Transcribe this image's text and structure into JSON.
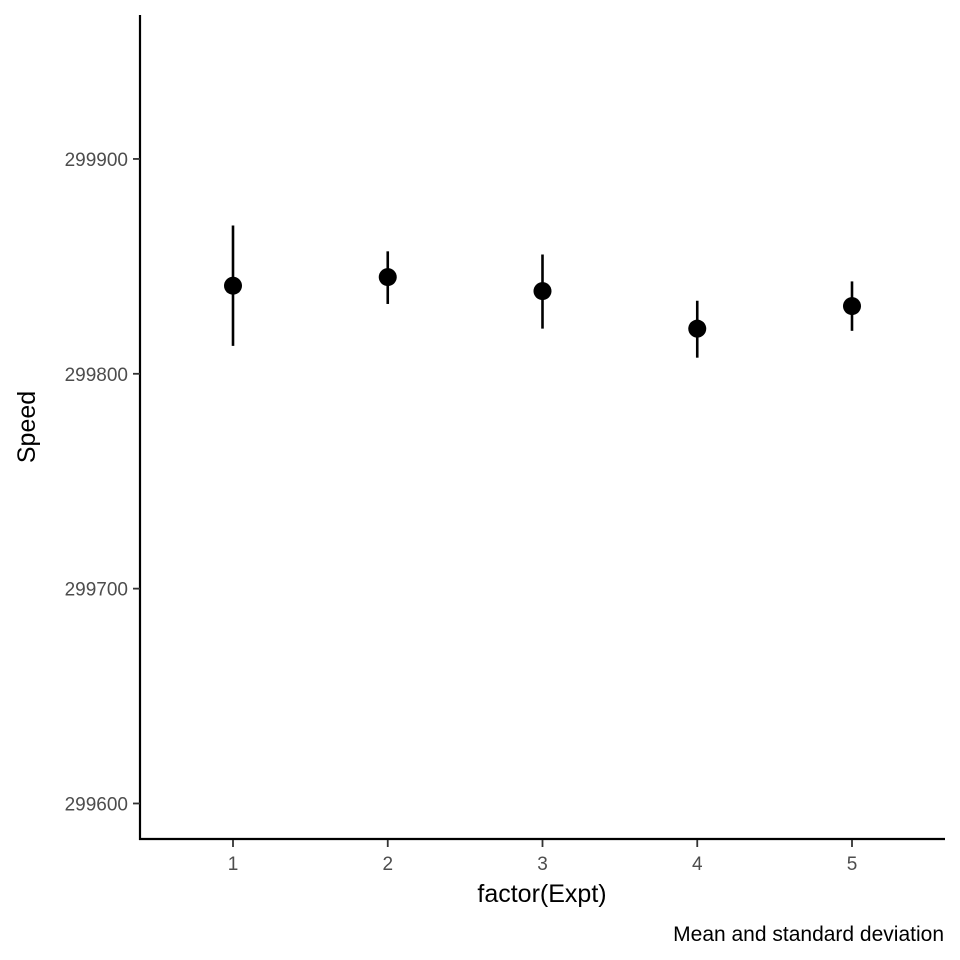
{
  "chart_data": {
    "type": "scatter",
    "title": "",
    "xlabel": "factor(Expt)",
    "ylabel": "Speed",
    "caption": "Mean and standard deviation",
    "categories": [
      "1",
      "2",
      "3",
      "4",
      "5"
    ],
    "series": [
      {
        "mean": [
          299841,
          299845,
          299838.5,
          299821,
          299831.5
        ],
        "lower": [
          299813,
          299832.5,
          299821,
          299807.5,
          299820
        ],
        "upper": [
          299869,
          299857,
          299855.5,
          299834,
          299843
        ]
      }
    ],
    "ylim": [
      299583,
      299967
    ],
    "yticks": [
      "299600",
      "299700",
      "299800",
      "299900"
    ],
    "grid": false,
    "legend": "none",
    "colors": {
      "point": "#000000",
      "axis": "#000000",
      "tick_text": "#4d4d4d"
    }
  }
}
